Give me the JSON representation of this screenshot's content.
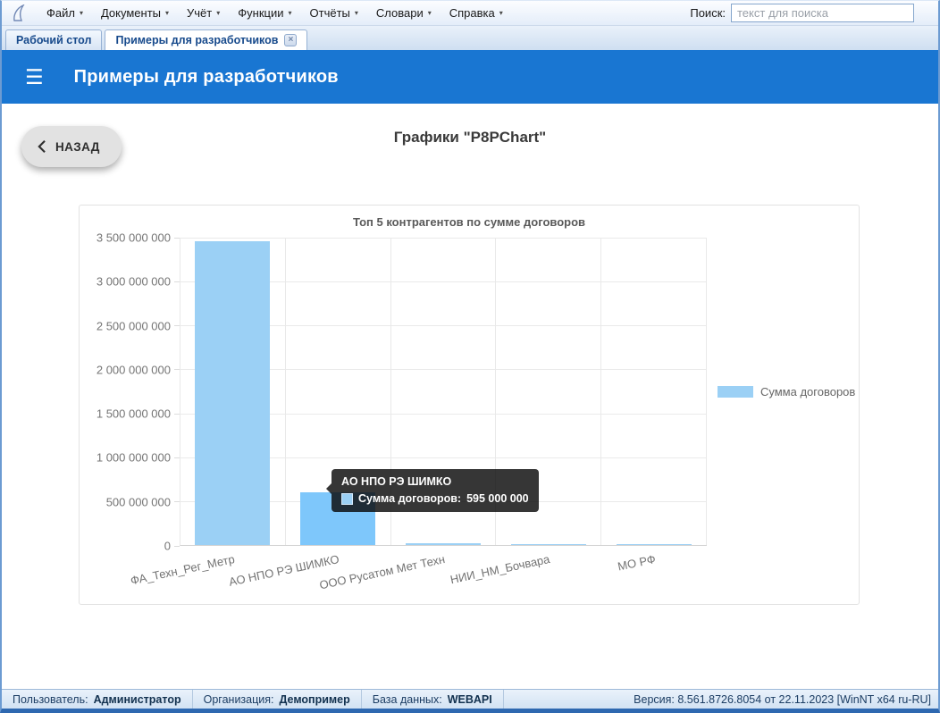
{
  "icons": {
    "caret": "▾",
    "gear": "⚙",
    "hamburger": "☰",
    "close": "×"
  },
  "menu_bar": {
    "app_icon": "parus-sail-icon",
    "items": [
      "Файл",
      "Документы",
      "Учёт",
      "Функции",
      "Отчёты",
      "Словари",
      "Справка"
    ],
    "search_label": "Поиск:",
    "search_placeholder": "текст для поиска"
  },
  "tabs": [
    {
      "label": "Рабочий стол",
      "active": false,
      "closable": false
    },
    {
      "label": "Примеры для разработчиков",
      "active": true,
      "closable": true
    }
  ],
  "header": {
    "title": "Примеры для разработчиков",
    "color": "#1976d2"
  },
  "page": {
    "back_button": "НАЗАД",
    "title": "Графики \"P8PChart\""
  },
  "chart_data": {
    "type": "bar",
    "title": "Топ 5 контрагентов по сумме договоров",
    "categories": [
      "ФА_Техн_Рег_Метр",
      "АО НПО РЭ ШИМКО",
      "ООО Русатом Мет Техн",
      "НИИ_НМ_Бочвара",
      "МО РФ"
    ],
    "series": [
      {
        "name": "Сумма договоров",
        "values": [
          3450000000,
          595000000,
          20000000,
          8000000,
          12000000
        ]
      }
    ],
    "ylim": [
      0,
      3500000000
    ],
    "ytick_labels": [
      "0",
      "500 000 000",
      "1 000 000 000",
      "1 500 000 000",
      "2 000 000 000",
      "2 500 000 000",
      "3 000 000 000",
      "3 500 000 000"
    ],
    "grid": true,
    "legend_position": "right",
    "bar_color": "#9bd0f5",
    "bar_hover_color": "#7ec7fb",
    "hovered_index": 1,
    "tooltip": {
      "title": "АО НПО РЭ ШИМКО",
      "label": "Сумма договоров:",
      "value": "595 000 000"
    }
  },
  "status_bar": {
    "items": [
      {
        "label": "Пользователь:",
        "value": "Администратор"
      },
      {
        "label": "Организация:",
        "value": "Демопример"
      },
      {
        "label": "База данных:",
        "value": "WEBAPI"
      }
    ],
    "version": "Версия: 8.561.8726.8054 от 22.11.2023 [WinNT x64 ru-RU]"
  }
}
